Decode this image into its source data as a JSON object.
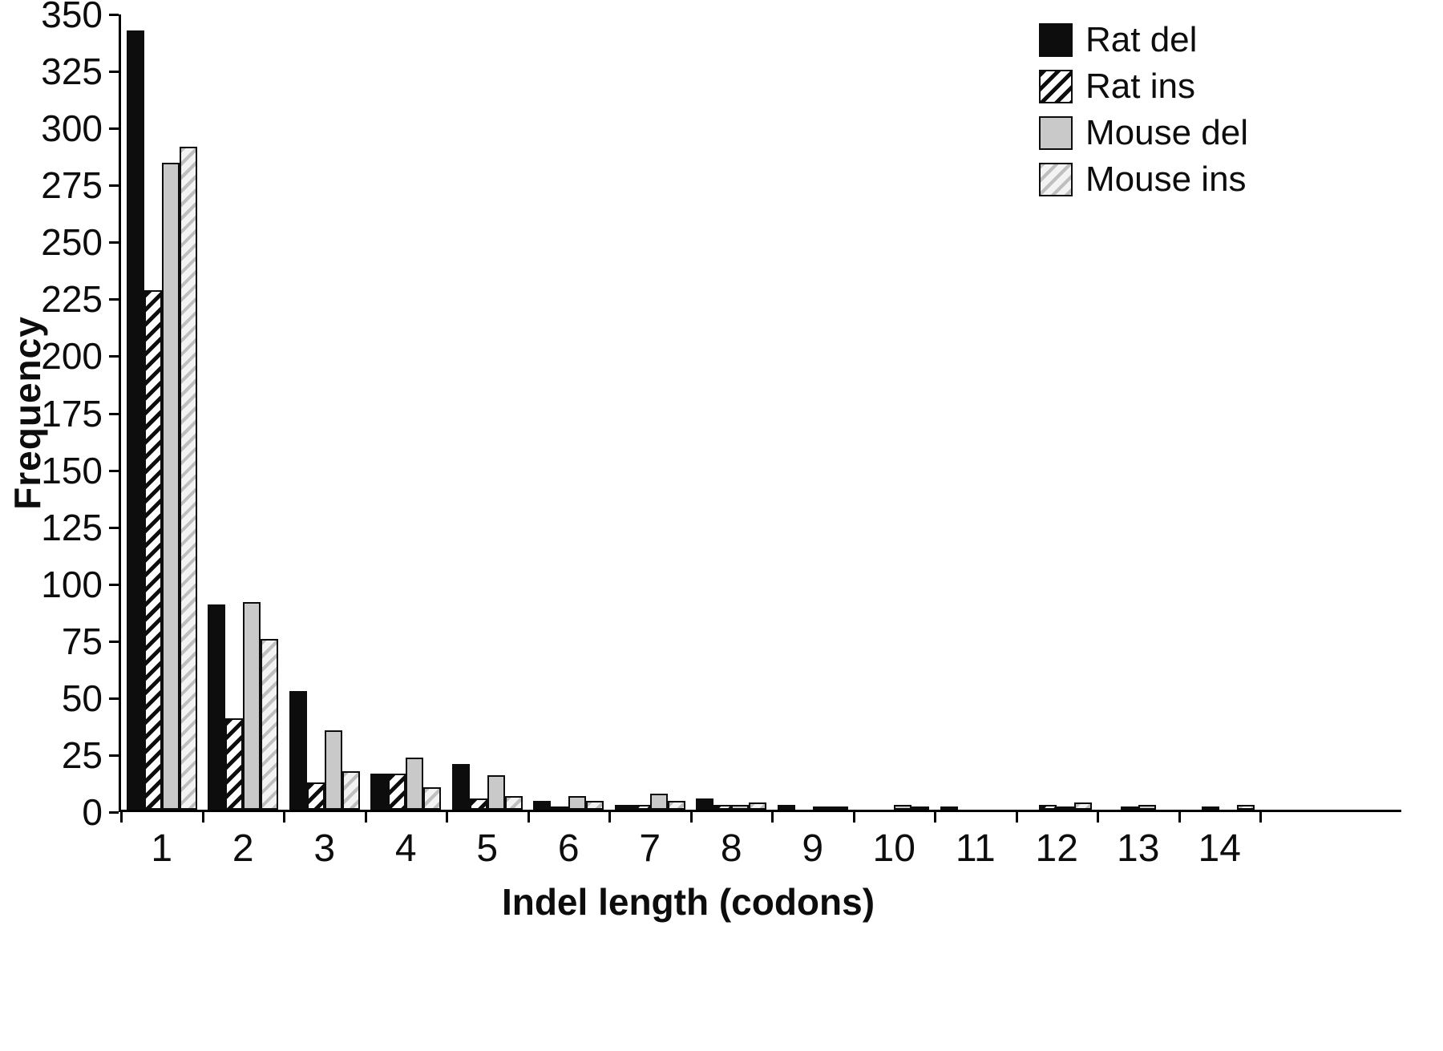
{
  "chart_data": {
    "type": "bar",
    "title": "",
    "xlabel": "Indel length (codons)",
    "ylabel": "Frequency",
    "ylim": [
      0,
      350
    ],
    "ytick_step": 25,
    "grid": false,
    "legend_position": "top-right",
    "categories": [
      "1",
      "2",
      "3",
      "4",
      "5",
      "6",
      "7",
      "8",
      "9",
      "10",
      "11",
      "12",
      "13",
      "14"
    ],
    "series": [
      {
        "name": "Rat del",
        "fill": "solid-black",
        "values": [
          342,
          90,
          52,
          16,
          20,
          4,
          2,
          5,
          2,
          0,
          1,
          0,
          0,
          0
        ]
      },
      {
        "name": "Rat ins",
        "fill": "black-hatch",
        "values": [
          228,
          40,
          12,
          16,
          5,
          1,
          2,
          2,
          0,
          0,
          0,
          2,
          1,
          1
        ]
      },
      {
        "name": "Mouse del",
        "fill": "solid-gray",
        "values": [
          284,
          91,
          35,
          23,
          15,
          6,
          7,
          2,
          1,
          2,
          0,
          1,
          2,
          0
        ]
      },
      {
        "name": "Mouse ins",
        "fill": "gray-hatch",
        "values": [
          291,
          75,
          17,
          10,
          6,
          4,
          4,
          3,
          1,
          1,
          0,
          3,
          0,
          2
        ]
      }
    ]
  },
  "colors": {
    "ink": "#0d0d0d",
    "solid_gray": "#c9c9c9",
    "hatch_dark": "#0d0d0d",
    "hatch_bg": "#ffffff",
    "hatch_gray": "#bfbfbf",
    "hatch_gray_bg": "#f3f3f3",
    "axis": "#000000",
    "background": "#ffffff"
  }
}
